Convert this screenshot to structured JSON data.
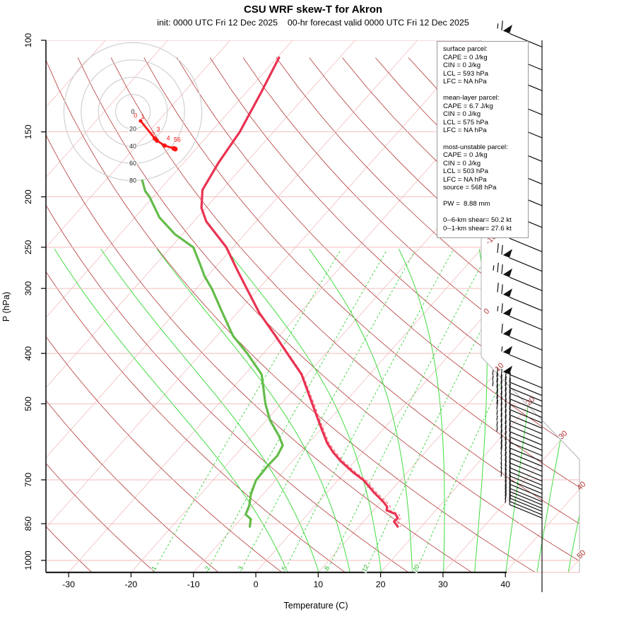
{
  "title": "CSU WRF skew-T for Akron",
  "subtitle": "init: 0000 UTC Fri 12 Dec 2025    00-hr forecast valid 0000 UTC Fri 12 Dec 2025",
  "axes": {
    "x_label": "Temperature (C)",
    "y_label": "P (hPa)",
    "x_ticks": [
      -30,
      -20,
      -10,
      0,
      10,
      20,
      30,
      40
    ],
    "p_ticks": [
      100,
      150,
      200,
      250,
      300,
      400,
      500,
      700,
      850,
      1000
    ]
  },
  "info_box": {
    "lines": [
      "surface parcel:",
      "CAPE = 0 J/kg",
      "CIN = 0 J/kg",
      "LCL = 593 hPa",
      "LFC = NA hPa",
      "",
      "mean-layer parcel:",
      "CAPE = 6.7 J/kg",
      "CIN = 0 J/kg",
      "LCL = 575 hPa",
      "LFC = NA hPa",
      "",
      "most-unstable parcel:",
      "CAPE = 0 J/kg",
      "CIN = 0 J/kg",
      "LCL = 503 hPa",
      "LFC = NA hPa",
      "source = 568 hPa",
      "",
      "PW =  8.88 mm",
      "",
      "0--6-km shear= 50.2 kt",
      "0--1-km shear= 27.6 kt"
    ]
  },
  "colors": {
    "temperature": "#e93251",
    "virtual_temp": "#f5828e",
    "dewpoint": "#63bc49",
    "dry_adiabat": "#b23737",
    "isotherm": "#f2c4c4",
    "grid": "#f0baba",
    "moist_adiabat": "#3fdc3f",
    "mixing_ratio": "#35d035",
    "mixing_label": "#2ab52a",
    "isotherm_label": "#b23737",
    "hodo_ring": "#c9c9c9",
    "hodo_trace": "#fb1414",
    "barb": "#111111",
    "boundary": "#b0b0b0"
  },
  "chart_data": {
    "type": "skewT",
    "title": "CSU WRF skew-T for Akron",
    "xlabel": "Temperature (C)",
    "ylabel": "P (hPa)",
    "x_range_c": [
      -35,
      45
    ],
    "p_range_hpa": [
      100,
      1050
    ],
    "temperature_profile": [
      {
        "p": 108,
        "t": -69.7
      },
      {
        "p": 126,
        "t": -67.6
      },
      {
        "p": 150,
        "t": -65.4
      },
      {
        "p": 172,
        "t": -64.4
      },
      {
        "p": 194,
        "t": -63.1
      },
      {
        "p": 210,
        "t": -60.7
      },
      {
        "p": 223,
        "t": -58.0
      },
      {
        "p": 250,
        "t": -51.1
      },
      {
        "p": 276,
        "t": -46.2
      },
      {
        "p": 301,
        "t": -41.8
      },
      {
        "p": 334,
        "t": -36.5
      },
      {
        "p": 370,
        "t": -30.6
      },
      {
        "p": 400,
        "t": -26.2
      },
      {
        "p": 439,
        "t": -20.9
      },
      {
        "p": 500,
        "t": -15.0
      },
      {
        "p": 547,
        "t": -10.9
      },
      {
        "p": 595,
        "t": -7.0
      },
      {
        "p": 620,
        "t": -4.7
      },
      {
        "p": 645,
        "t": -2.2
      },
      {
        "p": 677,
        "t": 1.3
      },
      {
        "p": 702,
        "t": 4.2
      },
      {
        "p": 741,
        "t": 7.6
      },
      {
        "p": 772,
        "t": 10.4
      },
      {
        "p": 789,
        "t": 11.7
      },
      {
        "p": 801,
        "t": 12.1
      },
      {
        "p": 814,
        "t": 14.0
      },
      {
        "p": 829,
        "t": 15.0
      },
      {
        "p": 842,
        "t": 14.9
      },
      {
        "p": 861,
        "t": 16.2
      }
    ],
    "dewpoint_profile": [
      {
        "p": 186,
        "t": -74.1
      },
      {
        "p": 195,
        "t": -72.1
      },
      {
        "p": 200,
        "t": -70.6
      },
      {
        "p": 219,
        "t": -66.1
      },
      {
        "p": 236,
        "t": -61.2
      },
      {
        "p": 250,
        "t": -56.4
      },
      {
        "p": 270,
        "t": -52.8
      },
      {
        "p": 284,
        "t": -50.5
      },
      {
        "p": 301,
        "t": -47.4
      },
      {
        "p": 334,
        "t": -42.4
      },
      {
        "p": 370,
        "t": -37.4
      },
      {
        "p": 400,
        "t": -32.6
      },
      {
        "p": 439,
        "t": -27.3
      },
      {
        "p": 500,
        "t": -22.5
      },
      {
        "p": 538,
        "t": -19.4
      },
      {
        "p": 577,
        "t": -15.7
      },
      {
        "p": 601,
        "t": -13.8
      },
      {
        "p": 629,
        "t": -13.2
      },
      {
        "p": 660,
        "t": -13.3
      },
      {
        "p": 702,
        "t": -13.1
      },
      {
        "p": 747,
        "t": -11.9
      },
      {
        "p": 784,
        "t": -10.6
      },
      {
        "p": 816,
        "t": -9.9
      },
      {
        "p": 833,
        "t": -8.4
      },
      {
        "p": 861,
        "t": -7.5
      }
    ],
    "wind_barbs": [
      {
        "p": 103,
        "kt": 65
      },
      {
        "p": 114,
        "kt": 60
      },
      {
        "p": 125,
        "kt": 60
      },
      {
        "p": 139,
        "kt": 65
      },
      {
        "p": 154,
        "kt": 65
      },
      {
        "p": 171,
        "kt": 70
      },
      {
        "p": 189,
        "kt": 70
      },
      {
        "p": 208,
        "kt": 75
      },
      {
        "p": 229,
        "kt": 75
      },
      {
        "p": 255,
        "kt": 70
      },
      {
        "p": 278,
        "kt": 70
      },
      {
        "p": 303,
        "kt": 75
      },
      {
        "p": 331,
        "kt": 70
      },
      {
        "p": 360,
        "kt": 65
      },
      {
        "p": 394,
        "kt": 60
      },
      {
        "p": 427,
        "kt": 55
      },
      {
        "p": 466,
        "kt": 50
      },
      {
        "p": 482,
        "kt": 45
      },
      {
        "p": 494,
        "kt": 45
      },
      {
        "p": 506,
        "kt": 45
      },
      {
        "p": 519,
        "kt": 40
      },
      {
        "p": 531,
        "kt": 40
      },
      {
        "p": 544,
        "kt": 40
      },
      {
        "p": 557,
        "kt": 40
      },
      {
        "p": 571,
        "kt": 35
      },
      {
        "p": 585,
        "kt": 35
      },
      {
        "p": 600,
        "kt": 35
      },
      {
        "p": 614,
        "kt": 35
      },
      {
        "p": 629,
        "kt": 30
      },
      {
        "p": 645,
        "kt": 30
      },
      {
        "p": 659,
        "kt": 30
      },
      {
        "p": 674,
        "kt": 30
      },
      {
        "p": 689,
        "kt": 25
      },
      {
        "p": 704,
        "kt": 25
      },
      {
        "p": 717,
        "kt": 25
      },
      {
        "p": 730,
        "kt": 25
      },
      {
        "p": 744,
        "kt": 25
      },
      {
        "p": 757,
        "kt": 20
      },
      {
        "p": 771,
        "kt": 20
      },
      {
        "p": 782,
        "kt": 20
      },
      {
        "p": 794,
        "kt": 20
      },
      {
        "p": 805,
        "kt": 20
      },
      {
        "p": 817,
        "kt": 20
      },
      {
        "p": 829,
        "kt": 20
      }
    ],
    "hodograph": {
      "ring_interval_kt": 20,
      "ring_labels": [
        0,
        20,
        40,
        60,
        80
      ],
      "trace_kt": [
        [
          9,
          10.7
        ],
        [
          25.4,
          31.1
        ],
        [
          27.9,
          33.6
        ],
        [
          36.9,
          39.3
        ],
        [
          47.5,
          42.6
        ],
        [
          49.2,
          43.4
        ]
      ],
      "point_labels": [
        {
          "text": "0",
          "u": 3,
          "v": 7
        },
        {
          "text": "1",
          "u": 11.5,
          "v": 8
        },
        {
          "text": "3",
          "u": 29.5,
          "v": 23
        },
        {
          "text": "2",
          "u": 23.5,
          "v": 28.5
        },
        {
          "text": "4",
          "u": 41,
          "v": 33
        },
        {
          "text": "56",
          "u": 51.5,
          "v": 35
        }
      ]
    },
    "isotherm_labels_c": [
      -10,
      0,
      10,
      20,
      30,
      40,
      50
    ],
    "mixing_ratio_lines_gkg": [
      1,
      2,
      3,
      5,
      8,
      12,
      20
    ],
    "moist_adiabat_surface_temps_c": [
      5,
      10,
      15,
      20,
      25,
      30,
      35,
      40,
      45,
      50,
      55
    ],
    "dry_adiabat_theta_c_step": 10
  }
}
